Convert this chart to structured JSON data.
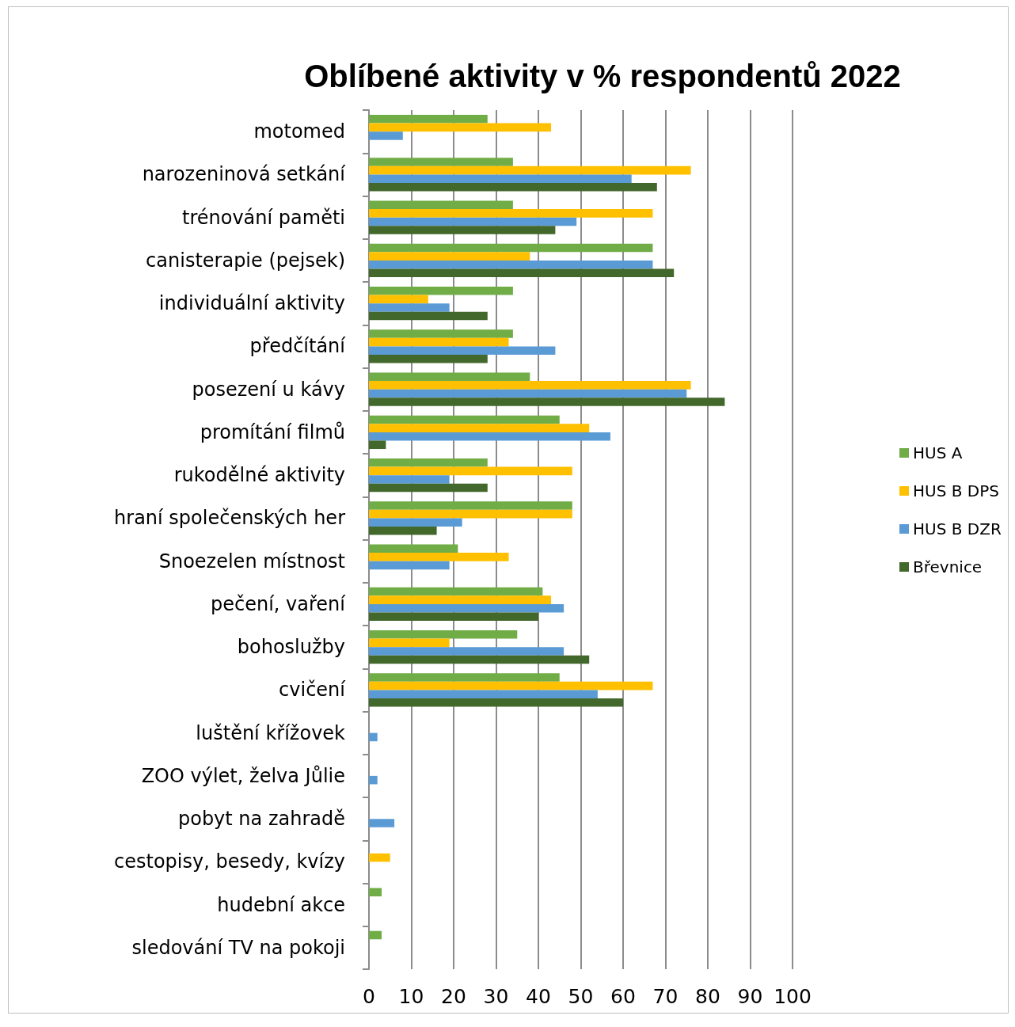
{
  "chart_data": {
    "type": "bar",
    "orientation": "horizontal",
    "title": "Oblíbené aktivity v % respondentů 2022",
    "categories": [
      "motomed",
      "narozeninová setkání",
      "trénování paměti",
      "canisterapie (pejsek)",
      "individuální aktivity",
      "předčítání",
      "posezení u kávy",
      "promítání filmů",
      "rukodělné aktivity",
      "hraní společenských her",
      "Snoezelen místnost",
      "pečení, vaření",
      "bohoslužby",
      "cvičení",
      "luštění křížovek",
      "ZOO výlet, želva Jůlie",
      "pobyt na zahradě",
      "cestopisy, besedy, kvízy",
      "hudební akce",
      "sledování TV na pokoji"
    ],
    "series": [
      {
        "name": "HUS A",
        "color": "#70ad47",
        "values": [
          28,
          34,
          34,
          67,
          34,
          34,
          38,
          45,
          28,
          48,
          21,
          41,
          35,
          45,
          null,
          null,
          null,
          null,
          3,
          3
        ]
      },
      {
        "name": "HUS B DPS",
        "color": "#ffc000",
        "values": [
          43,
          76,
          67,
          38,
          14,
          33,
          76,
          52,
          48,
          48,
          33,
          43,
          19,
          67,
          null,
          null,
          null,
          5,
          null,
          null
        ]
      },
      {
        "name": "HUS B DZR",
        "color": "#5b9bd5",
        "values": [
          8,
          62,
          49,
          67,
          19,
          44,
          75,
          57,
          19,
          22,
          19,
          46,
          46,
          54,
          2,
          2,
          6,
          null,
          null,
          null
        ]
      },
      {
        "name": "Břevnice",
        "color": "#43682b",
        "values": [
          null,
          68,
          44,
          72,
          28,
          28,
          84,
          4,
          28,
          16,
          null,
          40,
          52,
          60,
          null,
          null,
          null,
          null,
          null,
          null
        ]
      }
    ],
    "xlim": [
      0,
      100
    ],
    "xticks": [
      0,
      10,
      20,
      30,
      40,
      50,
      60,
      70,
      80,
      90,
      100
    ],
    "grid": "x",
    "legend": "right"
  }
}
